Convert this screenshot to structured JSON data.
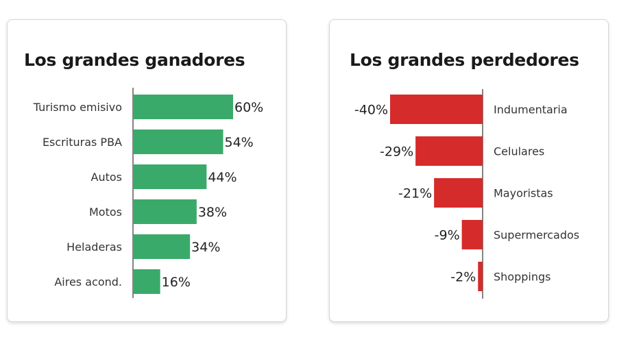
{
  "chart_data": [
    {
      "type": "bar",
      "orientation": "horizontal",
      "title": "Los grandes ganadores",
      "categories": [
        "Turismo emisivo",
        "Escrituras PBA",
        "Autos",
        "Motos",
        "Heladeras",
        "Aires acond."
      ],
      "values": [
        60,
        54,
        44,
        38,
        34,
        16
      ],
      "value_labels": [
        "60%",
        "54%",
        "44%",
        "38%",
        "34%",
        "16%"
      ],
      "xlim": [
        0,
        60
      ],
      "grid": false,
      "color": "#3aaa6a"
    },
    {
      "type": "bar",
      "orientation": "horizontal",
      "title": "Los grandes perdedores",
      "categories": [
        "Indumentaria",
        "Celulares",
        "Mayoristas",
        "Supermercados",
        "Shoppings"
      ],
      "values": [
        -40,
        -29,
        -21,
        -9,
        -2
      ],
      "value_labels": [
        "-40%",
        "-29%",
        "-21%",
        "-9%",
        "-2%"
      ],
      "xlim": [
        -40,
        0
      ],
      "grid": false,
      "color": "#d62b2b"
    }
  ]
}
